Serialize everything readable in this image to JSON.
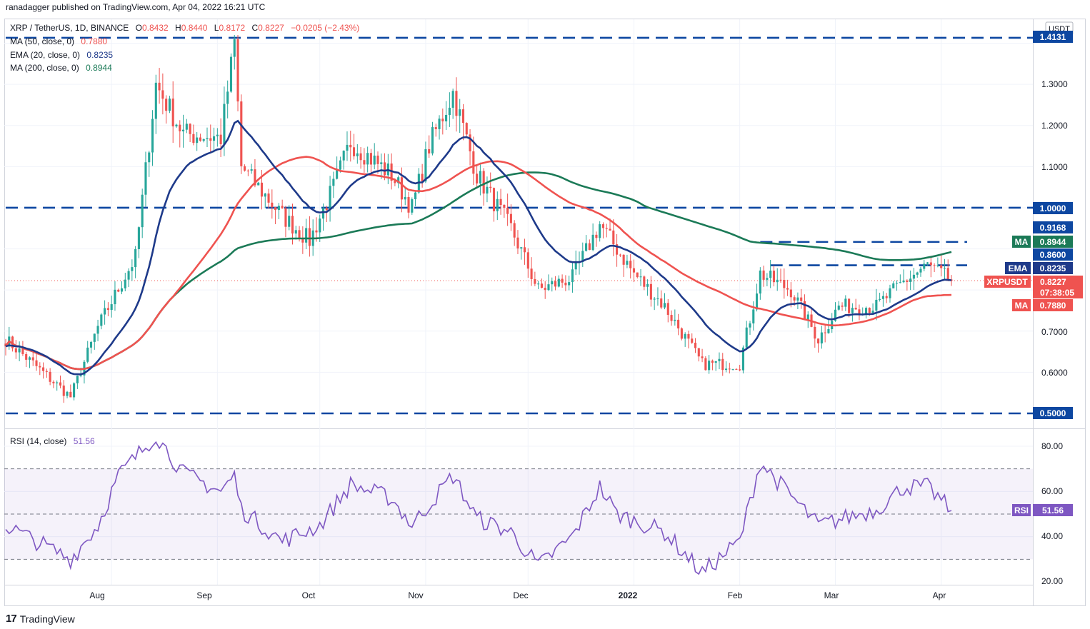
{
  "header": {
    "published_by": "ranadagger published on TradingView.com, Apr 04, 2022 16:21 UTC",
    "symbol_line": "XRP / TetherUS, 1D, BINANCE",
    "o_label": "O",
    "o_value": "0.8432",
    "h_label": "H",
    "h_value": "0.8440",
    "l_label": "L",
    "l_value": "0.8172",
    "c_label": "C",
    "c_value": "0.8227",
    "change": "−0.0205 (−2.43%)",
    "change_color": "#ef5350",
    "indicators": [
      {
        "label": "MA (50, close, 0)",
        "value": "0.7880",
        "color": "#ef5350"
      },
      {
        "label": "EMA (20, close, 0)",
        "value": "0.8235",
        "color": "#1e3a8a"
      },
      {
        "label": "MA (200, close, 0)",
        "value": "0.8944",
        "color": "#1b7a57"
      }
    ],
    "rsi_label": "RSI (14, close)",
    "rsi_value": "51.56",
    "rsi_color": "#7e57c2"
  },
  "axis": {
    "currency": "USDT",
    "price_ticks": [
      "1.3000",
      "1.2000",
      "1.1000",
      "0.7000",
      "0.6000"
    ],
    "rsi_ticks": [
      "80.00",
      "60.00",
      "40.00",
      "20.00"
    ],
    "time_labels": [
      "Aug",
      "Sep",
      "Oct",
      "Nov",
      "Dec",
      "2022",
      "Feb",
      "Mar",
      "Apr"
    ]
  },
  "price_labels": [
    {
      "text": "1.4131",
      "color": "#0d47a1"
    },
    {
      "text": "1.0000",
      "color": "#0d47a1"
    },
    {
      "text": "0.9168",
      "color": "#0d47a1"
    },
    {
      "text": "0.8944",
      "tag": "MA",
      "color": "#1b7a57"
    },
    {
      "text": "0.8600",
      "color": "#0d47a1"
    },
    {
      "text": "0.8235",
      "tag": "EMA",
      "color": "#1e3a8a"
    },
    {
      "text": "0.8227",
      "tag": "XRPUSDT",
      "countdown": "07:38:05",
      "color": "#ef5350"
    },
    {
      "text": "0.7880",
      "tag": "MA",
      "color": "#ef5350"
    },
    {
      "text": "0.5000",
      "color": "#0d47a1"
    }
  ],
  "rsi_axis_label": {
    "tag": "RSI",
    "text": "51.56",
    "color": "#7e57c2"
  },
  "brand": {
    "logo": "17",
    "name": "TradingView"
  },
  "chart_data": {
    "type": "candlestick",
    "symbol": "XRP / TetherUS",
    "timeframe": "1D",
    "exchange": "BINANCE",
    "date_range": [
      "2021-07-01",
      "2022-04-04"
    ],
    "ylim": [
      0.5,
      1.42
    ],
    "last_close": 0.8227,
    "horizontal_levels": [
      1.4131,
      1.0,
      0.9168,
      0.86,
      0.5
    ],
    "level_segments": [
      {
        "value": 0.9168,
        "from": "2022-02-07",
        "to": "2022-04-04"
      },
      {
        "value": 0.86,
        "from": "2022-02-10",
        "to": "2022-04-04"
      }
    ],
    "ohlc_anchors": [
      {
        "date": "2021-07-01",
        "close": 0.68
      },
      {
        "date": "2021-07-20",
        "close": 0.54
      },
      {
        "date": "2021-07-28",
        "close": 0.71
      },
      {
        "date": "2021-08-08",
        "close": 0.88
      },
      {
        "date": "2021-08-14",
        "close": 1.3
      },
      {
        "date": "2021-08-22",
        "close": 1.18
      },
      {
        "date": "2021-09-02",
        "close": 1.17
      },
      {
        "date": "2021-09-06",
        "close": 1.4
      },
      {
        "date": "2021-09-08",
        "close": 1.1
      },
      {
        "date": "2021-09-20",
        "close": 0.98
      },
      {
        "date": "2021-09-28",
        "close": 0.92
      },
      {
        "date": "2021-10-05",
        "close": 1.05
      },
      {
        "date": "2021-10-10",
        "close": 1.16
      },
      {
        "date": "2021-10-22",
        "close": 1.08
      },
      {
        "date": "2021-10-28",
        "close": 1.0
      },
      {
        "date": "2021-11-02",
        "close": 1.15
      },
      {
        "date": "2021-11-09",
        "close": 1.28
      },
      {
        "date": "2021-11-16",
        "close": 1.08
      },
      {
        "date": "2021-11-26",
        "close": 0.95
      },
      {
        "date": "2021-12-04",
        "close": 0.8
      },
      {
        "date": "2021-12-14",
        "close": 0.83
      },
      {
        "date": "2021-12-22",
        "close": 0.96
      },
      {
        "date": "2022-01-01",
        "close": 0.84
      },
      {
        "date": "2022-01-10",
        "close": 0.76
      },
      {
        "date": "2022-01-21",
        "close": 0.62
      },
      {
        "date": "2022-02-01",
        "close": 0.62
      },
      {
        "date": "2022-02-07",
        "close": 0.84
      },
      {
        "date": "2022-02-16",
        "close": 0.8
      },
      {
        "date": "2022-02-24",
        "close": 0.68
      },
      {
        "date": "2022-03-02",
        "close": 0.76
      },
      {
        "date": "2022-03-13",
        "close": 0.76
      },
      {
        "date": "2022-03-21",
        "close": 0.82
      },
      {
        "date": "2022-03-28",
        "close": 0.86
      },
      {
        "date": "2022-04-04",
        "close": 0.8227
      }
    ],
    "series": [
      {
        "name": "MA (50, close, 0)",
        "color": "#ef5350",
        "last": 0.788
      },
      {
        "name": "EMA (20, close, 0)",
        "color": "#1e3a8a",
        "last": 0.8235
      },
      {
        "name": "MA (200, close, 0)",
        "color": "#1b7a57",
        "last": 0.8944
      }
    ],
    "rsi": {
      "name": "RSI (14, close)",
      "ylim": [
        20,
        90
      ],
      "bands": [
        30,
        50,
        70
      ],
      "last": 51.56,
      "anchors": [
        {
          "date": "2021-07-01",
          "value": 45
        },
        {
          "date": "2021-07-20",
          "value": 30
        },
        {
          "date": "2021-07-28",
          "value": 45
        },
        {
          "date": "2021-08-03",
          "value": 67
        },
        {
          "date": "2021-08-14",
          "value": 85
        },
        {
          "date": "2021-08-22",
          "value": 68
        },
        {
          "date": "2021-09-02",
          "value": 60
        },
        {
          "date": "2021-09-06",
          "value": 67
        },
        {
          "date": "2021-09-08",
          "value": 52
        },
        {
          "date": "2021-09-20",
          "value": 38
        },
        {
          "date": "2021-10-01",
          "value": 45
        },
        {
          "date": "2021-10-10",
          "value": 63
        },
        {
          "date": "2021-10-22",
          "value": 57
        },
        {
          "date": "2021-10-28",
          "value": 45
        },
        {
          "date": "2021-11-09",
          "value": 67
        },
        {
          "date": "2021-11-16",
          "value": 48
        },
        {
          "date": "2021-11-26",
          "value": 42
        },
        {
          "date": "2021-12-04",
          "value": 27
        },
        {
          "date": "2021-12-14",
          "value": 40
        },
        {
          "date": "2021-12-22",
          "value": 62
        },
        {
          "date": "2021-12-27",
          "value": 50
        },
        {
          "date": "2022-01-10",
          "value": 42
        },
        {
          "date": "2022-01-21",
          "value": 24
        },
        {
          "date": "2022-02-01",
          "value": 38
        },
        {
          "date": "2022-02-07",
          "value": 73
        },
        {
          "date": "2022-02-16",
          "value": 58
        },
        {
          "date": "2022-02-24",
          "value": 45
        },
        {
          "date": "2022-03-13",
          "value": 52
        },
        {
          "date": "2022-03-21",
          "value": 62
        },
        {
          "date": "2022-03-28",
          "value": 62
        },
        {
          "date": "2022-04-04",
          "value": 51.56
        }
      ]
    }
  }
}
